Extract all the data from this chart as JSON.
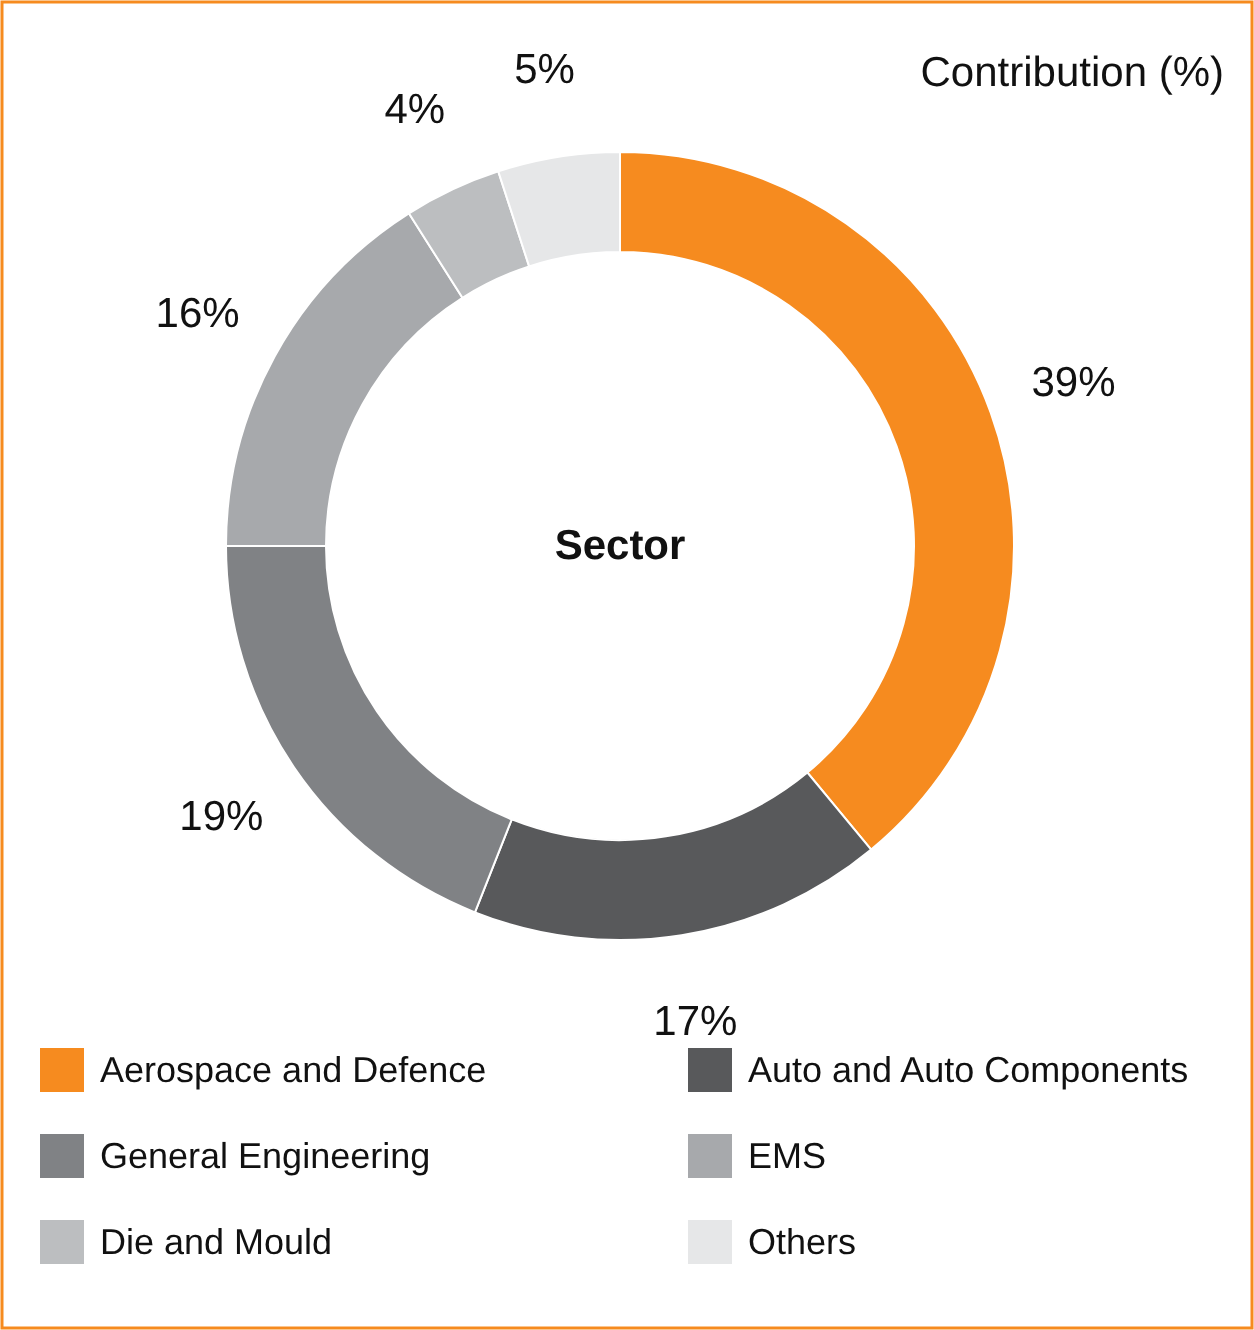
{
  "chart_data": {
    "type": "donut",
    "title": "Contribution (%)",
    "annotations": [
      "Sector"
    ],
    "categories": [
      "Aerospace and Defence",
      "Auto and Auto Components",
      "General Engineering",
      "EMS",
      "Die and Mould",
      "Others"
    ],
    "values": [
      39,
      17,
      19,
      16,
      4,
      5
    ],
    "value_labels": [
      "39%",
      "17%",
      "19%",
      "16%",
      "4%",
      "5%"
    ],
    "colors": [
      "#f68b1f",
      "#58595b",
      "#808285",
      "#a7a9ac",
      "#bcbec0",
      "#e6e7e8"
    ],
    "legend": "bottom"
  }
}
